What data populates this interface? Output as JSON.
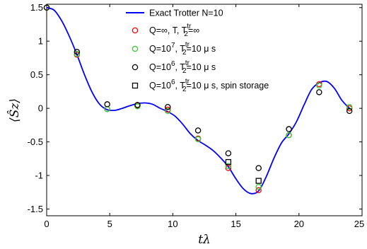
{
  "chart_data": {
    "type": "line",
    "xlabel": "tλ",
    "ylabel": "⟨Ŝz⟩",
    "xlim": [
      0,
      25
    ],
    "ylim": [
      -1.6,
      1.55
    ],
    "x_ticks": [
      "0",
      "5",
      "10",
      "15",
      "20",
      "25"
    ],
    "y_ticks": [
      "-1.5",
      "-1",
      "-0.5",
      "0",
      "0.5",
      "1",
      "1.5"
    ],
    "x_tick_values": [
      0,
      5,
      10,
      15,
      20,
      25
    ],
    "y_tick_values": [
      -1.5,
      -1,
      -0.5,
      0,
      0.5,
      1,
      1.5
    ],
    "grid": false,
    "legend_position": "top-right",
    "line_series": {
      "name": "Exact Trotter N=10",
      "color": "#0000ff",
      "x": [
        0,
        0.6,
        1.2,
        1.8,
        2.4,
        3.0,
        3.6,
        4.2,
        4.8,
        5.4,
        6.0,
        6.6,
        7.2,
        7.8,
        8.4,
        9.0,
        9.6,
        10.2,
        10.8,
        11.4,
        12.0,
        12.6,
        13.2,
        13.8,
        14.4,
        15.0,
        15.6,
        16.2,
        16.8,
        17.4,
        18.0,
        18.6,
        19.2,
        19.8,
        20.4,
        21.0,
        21.6,
        22.2,
        22.8,
        23.4,
        24.0
      ],
      "y": [
        1.5,
        1.46,
        1.3,
        1.07,
        0.8,
        0.5,
        0.24,
        0.06,
        -0.02,
        -0.03,
        0.0,
        0.04,
        0.07,
        0.08,
        0.06,
        0.0,
        -0.05,
        -0.12,
        -0.24,
        -0.38,
        -0.48,
        -0.55,
        -0.63,
        -0.74,
        -0.87,
        -1.05,
        -1.2,
        -1.27,
        -1.23,
        -1.02,
        -0.75,
        -0.52,
        -0.38,
        -0.2,
        0.05,
        0.28,
        0.38,
        0.4,
        0.3,
        0.12,
        0.0
      ]
    },
    "marker_series": [
      {
        "name": "Q=∞, T",
        "tail": "=∞",
        "marker": "circle",
        "color": "#ff0000",
        "x": [
          0,
          2.4,
          4.8,
          7.2,
          9.6,
          12.0,
          14.4,
          16.8,
          19.2,
          21.6,
          24.0
        ],
        "y": [
          1.5,
          0.8,
          -0.01,
          0.04,
          -0.02,
          -0.45,
          -0.89,
          -1.22,
          -0.4,
          0.36,
          0.0
        ]
      },
      {
        "name": "Q=10",
        "exp": "7",
        "tail": "=10 μ s",
        "marker": "circle",
        "color": "#33cc33",
        "x": [
          0,
          2.4,
          4.8,
          7.2,
          9.6,
          12.0,
          14.4,
          16.8,
          19.2,
          21.6,
          24.0
        ],
        "y": [
          1.5,
          0.81,
          -0.01,
          0.03,
          -0.04,
          -0.46,
          -0.86,
          -1.17,
          -0.4,
          0.34,
          0.02
        ]
      },
      {
        "name": "Q=10",
        "exp": "6",
        "tail": "=10 μ s",
        "marker": "circle",
        "color": "#000000",
        "x": [
          0,
          2.4,
          4.8,
          7.2,
          9.6,
          12.0,
          14.4,
          16.8,
          19.2,
          21.6,
          24.0
        ],
        "y": [
          1.5,
          0.84,
          0.06,
          0.05,
          0.02,
          -0.33,
          -0.67,
          -0.89,
          -0.31,
          0.24,
          -0.04
        ]
      },
      {
        "name": "Q=10",
        "exp": "6",
        "tail": "=10 μ s, spin storage",
        "marker": "square",
        "color": "#000000",
        "x": [
          14.4,
          16.8
        ],
        "y": [
          -0.8,
          -1.08
        ]
      }
    ],
    "legend_t_sup": "tr",
    "legend_t_sub": "2"
  }
}
